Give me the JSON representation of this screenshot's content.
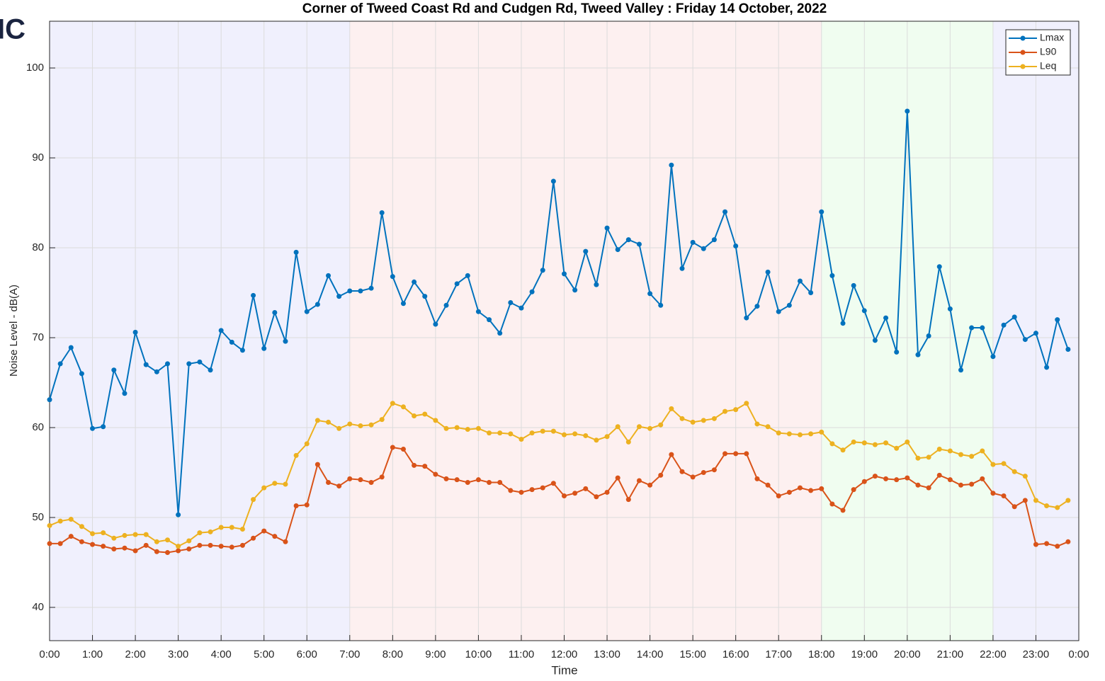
{
  "chart_data": {
    "type": "line",
    "title": "Corner of Tweed Coast Rd and Cudgen Rd, Tweed Valley :  Friday 14 October, 2022",
    "logo_text": "IC",
    "x_label": "Time",
    "y_label": "Noise Level - dB(A)",
    "xlim": [
      0,
      24
    ],
    "ylim": [
      36.3,
      105.2
    ],
    "yticks": [
      40,
      50,
      60,
      70,
      80,
      90,
      100
    ],
    "xticks": [
      {
        "value": 0,
        "label": "0:00"
      },
      {
        "value": 1,
        "label": "1:00"
      },
      {
        "value": 2,
        "label": "2:00"
      },
      {
        "value": 3,
        "label": "3:00"
      },
      {
        "value": 4,
        "label": "4:00"
      },
      {
        "value": 5,
        "label": "5:00"
      },
      {
        "value": 6,
        "label": "6:00"
      },
      {
        "value": 7,
        "label": "7:00"
      },
      {
        "value": 8,
        "label": "8:00"
      },
      {
        "value": 9,
        "label": "9:00"
      },
      {
        "value": 10,
        "label": "10:00"
      },
      {
        "value": 11,
        "label": "11:00"
      },
      {
        "value": 12,
        "label": "12:00"
      },
      {
        "value": 13,
        "label": "13:00"
      },
      {
        "value": 14,
        "label": "14:00"
      },
      {
        "value": 15,
        "label": "15:00"
      },
      {
        "value": 16,
        "label": "16:00"
      },
      {
        "value": 17,
        "label": "17:00"
      },
      {
        "value": 18,
        "label": "18:00"
      },
      {
        "value": 19,
        "label": "19:00"
      },
      {
        "value": 20,
        "label": "20:00"
      },
      {
        "value": 21,
        "label": "21:00"
      },
      {
        "value": 22,
        "label": "22:00"
      },
      {
        "value": 23,
        "label": "23:00"
      },
      {
        "value": 24,
        "label": "0:00"
      }
    ],
    "grid": true,
    "legend": "top-right",
    "bands": [
      {
        "from": 0,
        "to": 7,
        "color": "#f0f0fd"
      },
      {
        "from": 7,
        "to": 18,
        "color": "#fdf0f0"
      },
      {
        "from": 18,
        "to": 22,
        "color": "#f0fdf0"
      },
      {
        "from": 22,
        "to": 24,
        "color": "#f0f0fd"
      }
    ],
    "x": [
      0,
      0.25,
      0.5,
      0.75,
      1,
      1.25,
      1.5,
      1.75,
      2,
      2.25,
      2.5,
      2.75,
      3,
      3.25,
      3.5,
      3.75,
      4,
      4.25,
      4.5,
      4.75,
      5,
      5.25,
      5.5,
      5.75,
      6,
      6.25,
      6.5,
      6.75,
      7,
      7.25,
      7.5,
      7.75,
      8,
      8.25,
      8.5,
      8.75,
      9,
      9.25,
      9.5,
      9.75,
      10,
      10.25,
      10.5,
      10.75,
      11,
      11.25,
      11.5,
      11.75,
      12,
      12.25,
      12.5,
      12.75,
      13,
      13.25,
      13.5,
      13.75,
      14,
      14.25,
      14.5,
      14.75,
      15,
      15.25,
      15.5,
      15.75,
      16,
      16.25,
      16.5,
      16.75,
      17,
      17.25,
      17.5,
      17.75,
      18,
      18.25,
      18.5,
      18.75,
      19,
      19.25,
      19.5,
      19.75,
      20,
      20.25,
      20.5,
      20.75,
      21,
      21.25,
      21.5,
      21.75,
      22,
      22.25,
      22.5,
      22.75,
      23,
      23.25,
      23.5,
      23.75
    ],
    "series": [
      {
        "name": "Lmax",
        "color": "#0072bd",
        "values": [
          63.1,
          67.1,
          68.9,
          66.0,
          59.9,
          60.1,
          66.4,
          63.8,
          70.6,
          67.0,
          66.2,
          67.1,
          50.3,
          67.1,
          67.3,
          66.4,
          70.8,
          69.5,
          68.6,
          74.7,
          68.8,
          72.8,
          69.6,
          79.5,
          72.9,
          73.7,
          76.9,
          74.6,
          75.2,
          75.2,
          75.5,
          83.9,
          76.8,
          73.8,
          76.2,
          74.6,
          71.5,
          73.6,
          76.0,
          76.9,
          72.9,
          72.0,
          70.5,
          73.9,
          73.3,
          75.1,
          77.5,
          87.4,
          77.1,
          75.3,
          79.6,
          75.9,
          82.2,
          79.8,
          80.9,
          80.4,
          74.9,
          73.6,
          89.2,
          77.7,
          80.6,
          79.9,
          80.9,
          84.0,
          80.2,
          72.2,
          73.5,
          77.3,
          72.9,
          73.6,
          76.3,
          75.0,
          84.0,
          76.9,
          71.6,
          75.8,
          73.0,
          69.7,
          72.2,
          68.4,
          95.2,
          68.1,
          70.2,
          77.9,
          73.2,
          66.4,
          71.1,
          71.1,
          67.9,
          71.4,
          72.3,
          69.8,
          70.5,
          66.7,
          72.0,
          68.7
        ]
      },
      {
        "name": "L90",
        "color": "#d95319",
        "values": [
          47.1,
          47.1,
          47.9,
          47.3,
          47.0,
          46.8,
          46.5,
          46.6,
          46.3,
          46.9,
          46.2,
          46.1,
          46.3,
          46.5,
          46.9,
          46.9,
          46.8,
          46.7,
          46.9,
          47.7,
          48.5,
          47.9,
          47.3,
          51.3,
          51.4,
          55.9,
          53.9,
          53.5,
          54.3,
          54.2,
          53.9,
          54.5,
          57.8,
          57.6,
          55.8,
          55.7,
          54.8,
          54.3,
          54.2,
          53.9,
          54.2,
          53.9,
          53.9,
          53.0,
          52.8,
          53.1,
          53.3,
          53.8,
          52.4,
          52.7,
          53.2,
          52.3,
          52.8,
          54.4,
          52.0,
          54.1,
          53.6,
          54.7,
          57.0,
          55.1,
          54.5,
          55.0,
          55.3,
          57.1,
          57.1,
          57.1,
          54.3,
          53.6,
          52.4,
          52.8,
          53.3,
          53.0,
          53.2,
          51.5,
          50.8,
          53.1,
          54.0,
          54.6,
          54.3,
          54.2,
          54.4,
          53.6,
          53.3,
          54.7,
          54.2,
          53.6,
          53.7,
          54.3,
          52.7,
          52.4,
          51.2,
          51.9,
          47.0,
          47.1,
          46.8,
          47.3
        ]
      },
      {
        "name": "Leq",
        "color": "#edb120",
        "values": [
          49.1,
          49.6,
          49.8,
          49.0,
          48.2,
          48.3,
          47.7,
          48.0,
          48.1,
          48.1,
          47.3,
          47.5,
          46.8,
          47.4,
          48.3,
          48.4,
          48.9,
          48.9,
          48.7,
          52.0,
          53.3,
          53.8,
          53.7,
          56.9,
          58.2,
          60.8,
          60.6,
          59.9,
          60.4,
          60.2,
          60.3,
          60.9,
          62.7,
          62.3,
          61.3,
          61.5,
          60.8,
          59.9,
          60.0,
          59.8,
          59.9,
          59.4,
          59.4,
          59.3,
          58.7,
          59.4,
          59.6,
          59.6,
          59.2,
          59.3,
          59.1,
          58.6,
          59.0,
          60.1,
          58.4,
          60.1,
          59.9,
          60.3,
          62.1,
          61.0,
          60.6,
          60.8,
          61.0,
          61.8,
          62.0,
          62.7,
          60.4,
          60.1,
          59.4,
          59.3,
          59.2,
          59.3,
          59.5,
          58.2,
          57.5,
          58.4,
          58.3,
          58.1,
          58.3,
          57.7,
          58.4,
          56.6,
          56.7,
          57.6,
          57.4,
          57.0,
          56.8,
          57.4,
          55.9,
          56.0,
          55.1,
          54.6,
          51.9,
          51.3,
          51.1,
          51.9
        ]
      }
    ]
  }
}
